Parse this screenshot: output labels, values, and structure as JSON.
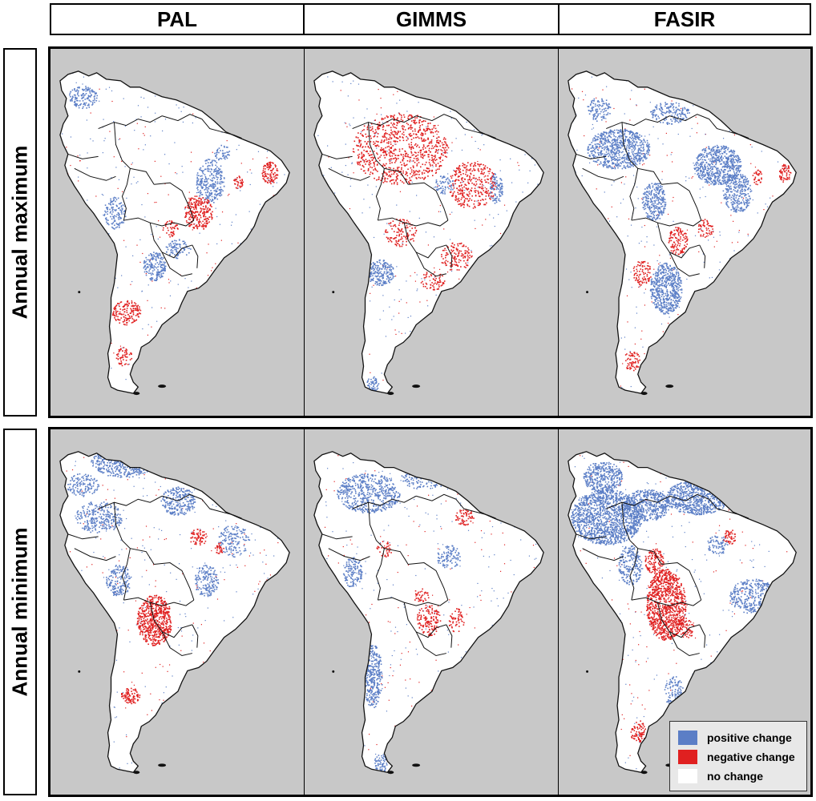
{
  "columns": [
    "PAL",
    "GIMMS",
    "FASIR"
  ],
  "rows": [
    "Annual maximum",
    "Annual minimum"
  ],
  "legend": {
    "items": [
      {
        "label": "positive change",
        "color": "#5b7ec6"
      },
      {
        "label": "negative change",
        "color": "#e02020"
      },
      {
        "label": "no change",
        "color": "#ffffff"
      }
    ]
  },
  "colors": {
    "ocean": "#c8c8c8",
    "land": "#ffffff",
    "coast": "#111111"
  }
}
